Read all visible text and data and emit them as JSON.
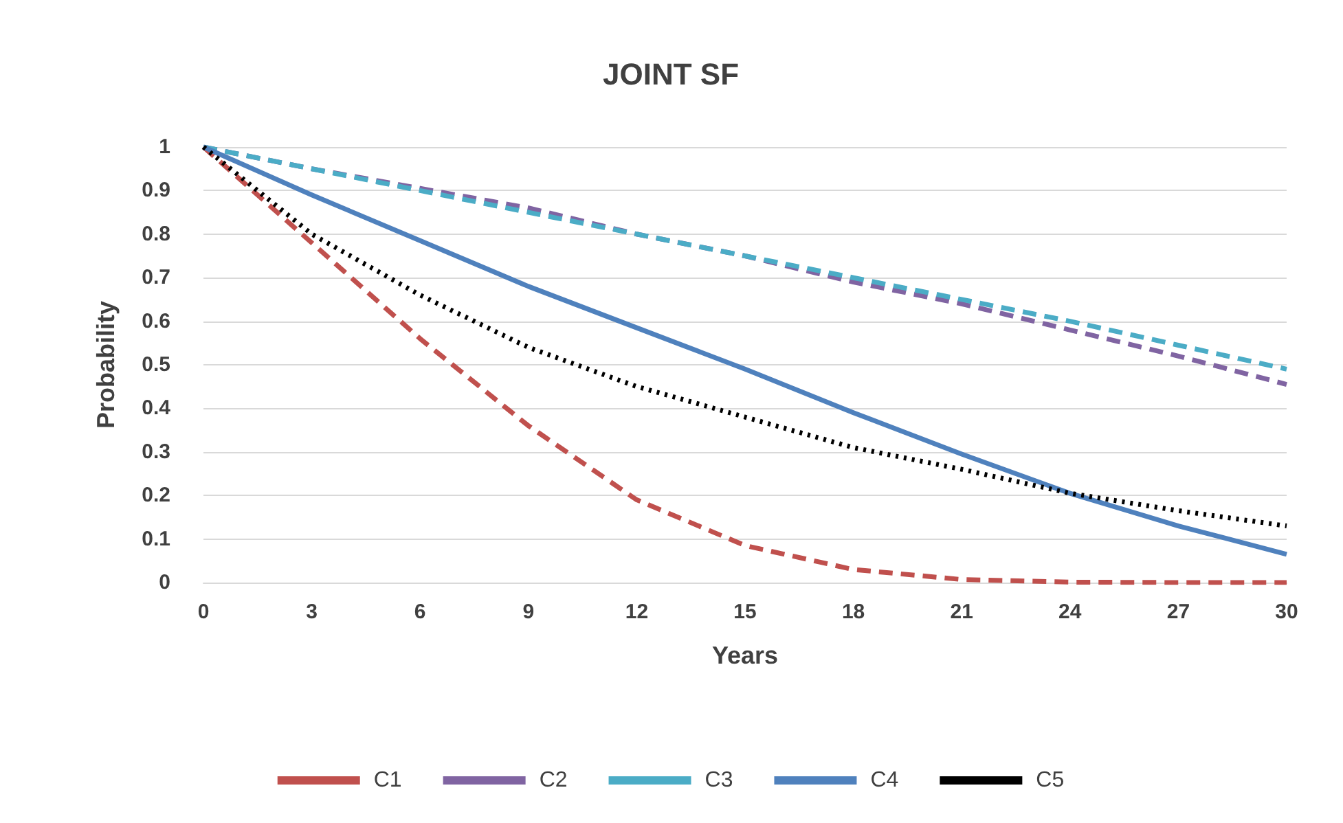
{
  "chart_data": {
    "type": "line",
    "title": "JOINT SF",
    "xlabel": "Years",
    "ylabel": "Probability",
    "x": [
      0,
      3,
      6,
      9,
      12,
      15,
      18,
      21,
      24,
      27,
      30
    ],
    "series": [
      {
        "name": "C1",
        "color": "#c0504d",
        "line_style": "dashed",
        "values": [
          1,
          0.78,
          0.56,
          0.36,
          0.19,
          0.085,
          0.03,
          0.007,
          0.001,
          0,
          0
        ]
      },
      {
        "name": "C2",
        "color": "#8064a2",
        "line_style": "dashed",
        "values": [
          1,
          0.95,
          0.905,
          0.86,
          0.8,
          0.75,
          0.69,
          0.64,
          0.58,
          0.52,
          0.455
        ]
      },
      {
        "name": "C3",
        "color": "#4bacc6",
        "line_style": "dashed",
        "values": [
          1,
          0.95,
          0.9,
          0.85,
          0.8,
          0.75,
          0.7,
          0.65,
          0.6,
          0.545,
          0.49
        ]
      },
      {
        "name": "C4",
        "color": "#4f81bd",
        "line_style": "solid",
        "values": [
          1,
          0.89,
          0.785,
          0.68,
          0.585,
          0.49,
          0.39,
          0.295,
          0.205,
          0.13,
          0.065
        ]
      },
      {
        "name": "C5",
        "color": "#000000",
        "line_style": "dotted",
        "values": [
          1,
          0.8,
          0.66,
          0.54,
          0.45,
          0.38,
          0.31,
          0.26,
          0.205,
          0.165,
          0.13
        ]
      }
    ],
    "xlim": [
      0,
      30
    ],
    "xticks": [
      0,
      3,
      6,
      9,
      12,
      15,
      18,
      21,
      24,
      27,
      30
    ],
    "ylim": [
      0,
      1
    ],
    "yticks": [
      0,
      0.1,
      0.2,
      0.3,
      0.4,
      0.5,
      0.6,
      0.7,
      0.8,
      0.9,
      1
    ],
    "grid": "y",
    "legend": "bottom",
    "marker": "none"
  }
}
